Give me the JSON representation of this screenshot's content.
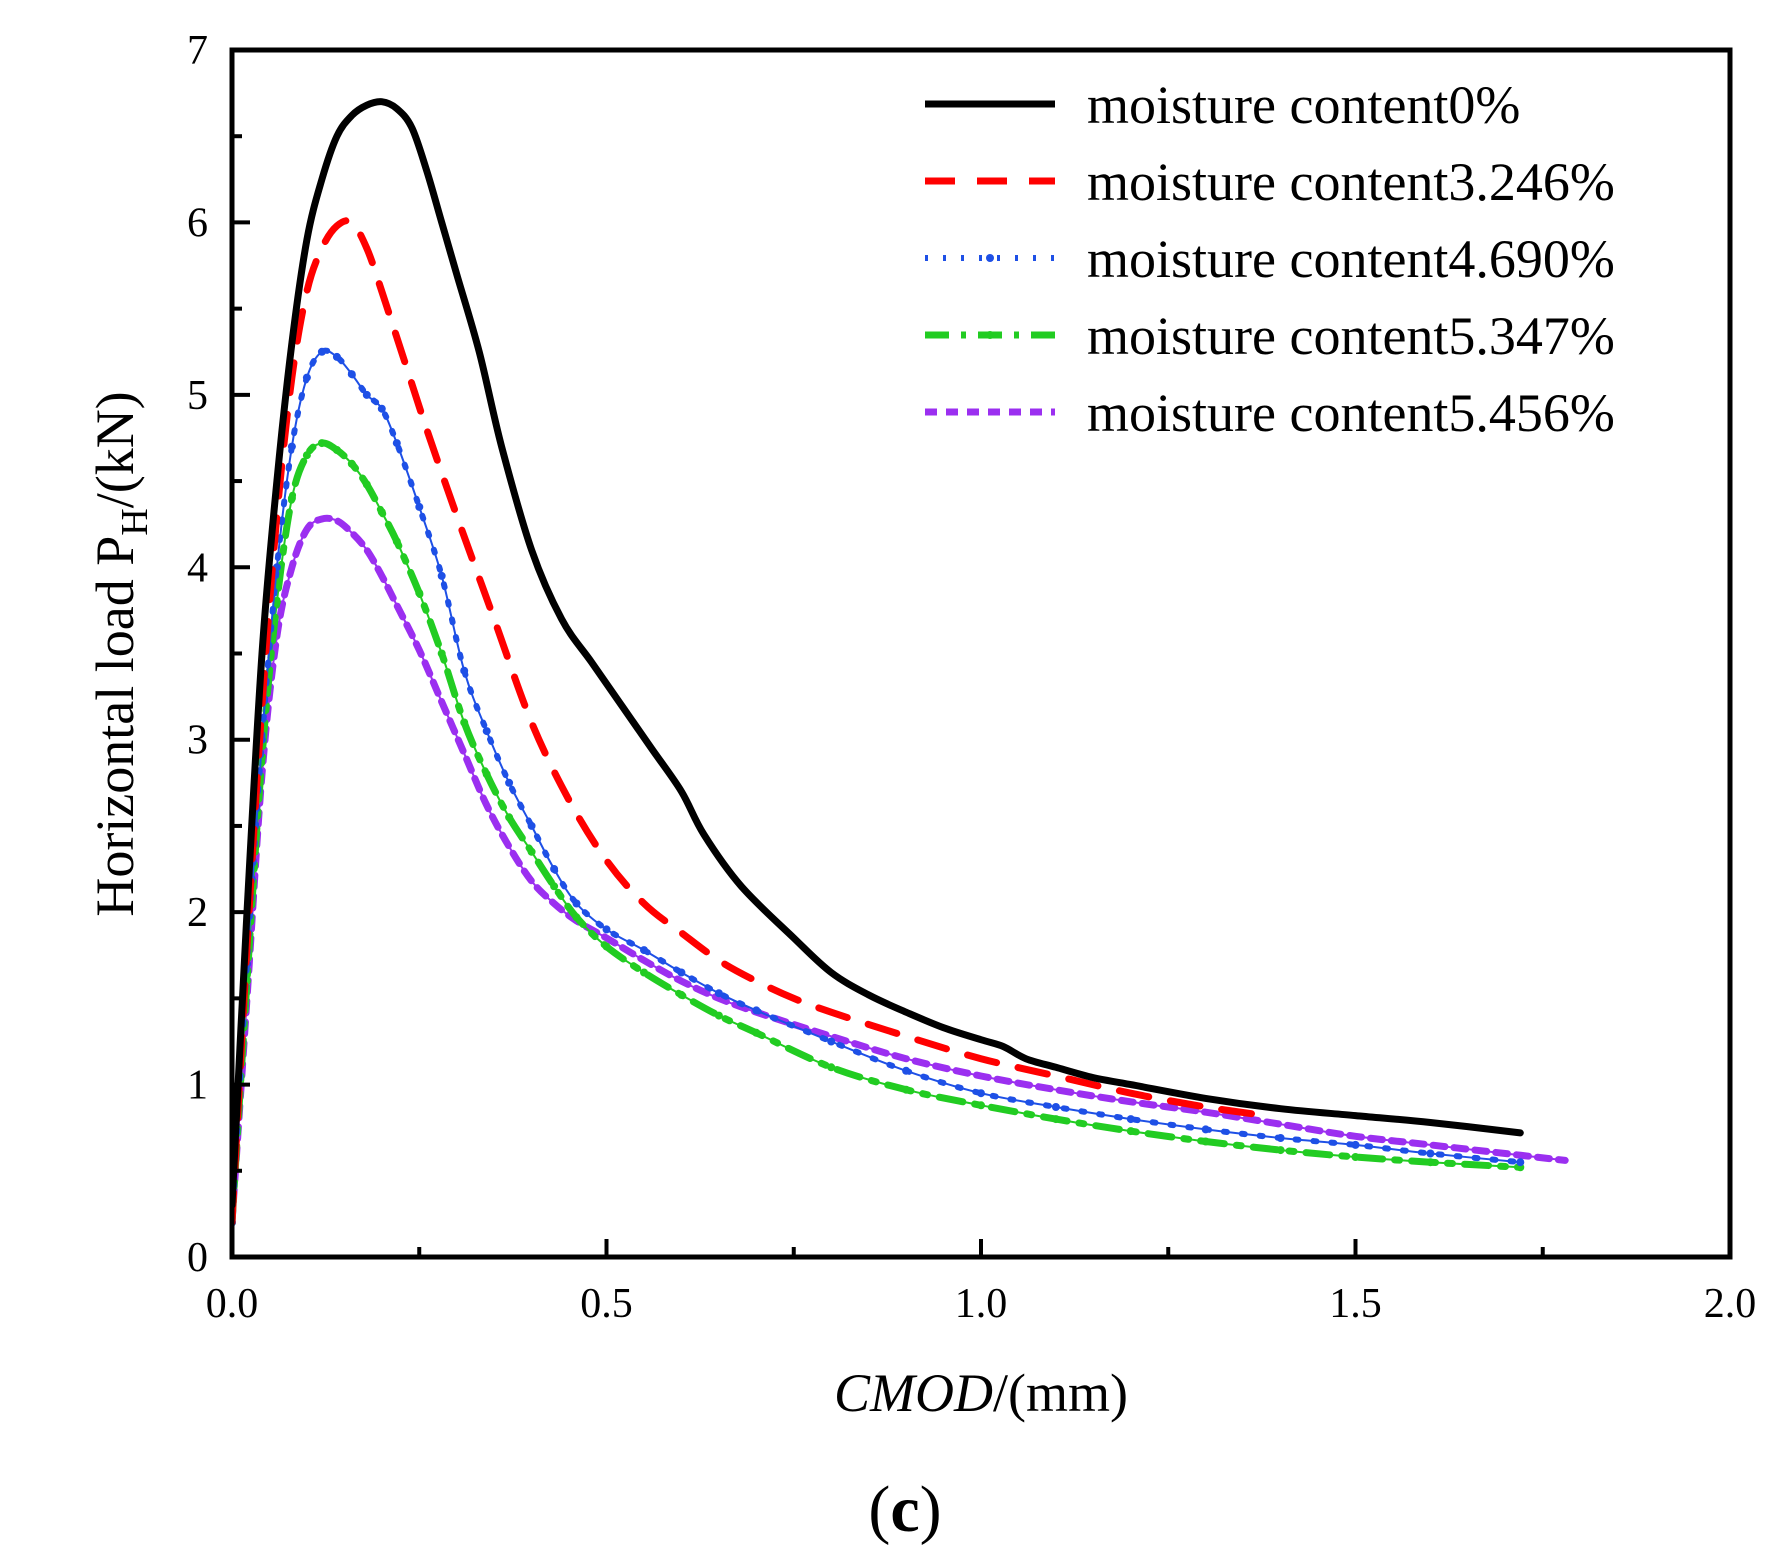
{
  "chart_data": {
    "type": "line",
    "title": "",
    "xlabel": "CMOD/(mm)",
    "xlabel_parts": {
      "italic": "CMOD",
      "rest": "/(mm)"
    },
    "ylabel": "Horizontal load PH/(kN)",
    "ylabel_parts": {
      "main": "Horizontal load P",
      "sub": "H",
      "rest": "/(kN)"
    },
    "xlim": [
      0.0,
      2.0
    ],
    "ylim": [
      0,
      7
    ],
    "x_ticks": [
      0.0,
      0.5,
      1.0,
      1.5,
      2.0
    ],
    "x_tick_labels": [
      "0.0",
      "0.5",
      "1.0",
      "1.5",
      "2.0"
    ],
    "y_ticks": [
      0,
      1,
      2,
      3,
      4,
      5,
      6,
      7
    ],
    "y_tick_labels": [
      "0",
      "1",
      "2",
      "3",
      "4",
      "5",
      "6",
      "7"
    ],
    "grid": false,
    "legend_position": "top-right",
    "panel_label": {
      "open": "(",
      "letter": "c",
      "close": ")"
    },
    "series": [
      {
        "name": "moisture content0%",
        "color": "#000000",
        "style": "solid",
        "x": [
          0,
          0.02,
          0.04,
          0.06,
          0.08,
          0.1,
          0.12,
          0.14,
          0.16,
          0.18,
          0.2,
          0.22,
          0.24,
          0.26,
          0.28,
          0.3,
          0.33,
          0.36,
          0.4,
          0.44,
          0.48,
          0.52,
          0.56,
          0.6,
          0.63,
          0.68,
          0.75,
          0.8,
          0.85,
          0.9,
          0.95,
          1.0,
          1.03,
          1.06,
          1.1,
          1.15,
          1.2,
          1.3,
          1.4,
          1.5,
          1.6,
          1.72
        ],
        "y": [
          0.3,
          2.0,
          3.5,
          4.5,
          5.3,
          5.9,
          6.25,
          6.5,
          6.62,
          6.68,
          6.7,
          6.66,
          6.55,
          6.3,
          6.0,
          5.7,
          5.25,
          4.7,
          4.1,
          3.7,
          3.45,
          3.2,
          2.95,
          2.7,
          2.45,
          2.15,
          1.85,
          1.65,
          1.52,
          1.42,
          1.33,
          1.26,
          1.22,
          1.15,
          1.1,
          1.04,
          1.0,
          0.92,
          0.86,
          0.82,
          0.78,
          0.72
        ]
      },
      {
        "name": "moisture content3.246%",
        "color": "#ff0000",
        "style": "dash",
        "x": [
          0,
          0.02,
          0.04,
          0.06,
          0.08,
          0.1,
          0.12,
          0.14,
          0.16,
          0.18,
          0.2,
          0.23,
          0.26,
          0.3,
          0.35,
          0.4,
          0.45,
          0.5,
          0.55,
          0.6,
          0.65,
          0.7,
          0.75,
          0.8,
          0.9,
          1.0,
          1.1,
          1.2,
          1.3,
          1.38
        ],
        "y": [
          0.2,
          1.8,
          3.2,
          4.3,
          5.1,
          5.6,
          5.85,
          5.98,
          6.0,
          5.85,
          5.6,
          5.2,
          4.8,
          4.3,
          3.7,
          3.1,
          2.65,
          2.3,
          2.05,
          1.88,
          1.72,
          1.6,
          1.5,
          1.42,
          1.28,
          1.15,
          1.05,
          0.95,
          0.87,
          0.82
        ]
      },
      {
        "name": "moisture content4.690%",
        "color": "#1e50e6",
        "style": "dot",
        "x": [
          0,
          0.02,
          0.04,
          0.06,
          0.08,
          0.1,
          0.12,
          0.14,
          0.16,
          0.18,
          0.2,
          0.22,
          0.25,
          0.28,
          0.31,
          0.34,
          0.37,
          0.4,
          0.43,
          0.46,
          0.5,
          0.55,
          0.6,
          0.65,
          0.7,
          0.8,
          0.9,
          1.0,
          1.1,
          1.2,
          1.3,
          1.4,
          1.5,
          1.6,
          1.72
        ],
        "y": [
          0.2,
          1.7,
          3.0,
          4.0,
          4.7,
          5.1,
          5.25,
          5.22,
          5.12,
          5.0,
          4.92,
          4.72,
          4.35,
          3.95,
          3.4,
          3.05,
          2.75,
          2.5,
          2.25,
          2.05,
          1.9,
          1.78,
          1.65,
          1.53,
          1.43,
          1.25,
          1.08,
          0.95,
          0.87,
          0.8,
          0.74,
          0.69,
          0.65,
          0.6,
          0.55
        ]
      },
      {
        "name": "moisture content5.347%",
        "color": "#22cc22",
        "style": "dashdot",
        "x": [
          0,
          0.02,
          0.04,
          0.06,
          0.08,
          0.1,
          0.12,
          0.14,
          0.16,
          0.18,
          0.2,
          0.22,
          0.25,
          0.28,
          0.31,
          0.34,
          0.37,
          0.4,
          0.43,
          0.46,
          0.5,
          0.55,
          0.6,
          0.65,
          0.7,
          0.8,
          0.9,
          1.0,
          1.1,
          1.2,
          1.3,
          1.4,
          1.5,
          1.6,
          1.72
        ],
        "y": [
          0.2,
          1.6,
          2.9,
          3.8,
          4.4,
          4.65,
          4.72,
          4.68,
          4.6,
          4.48,
          4.32,
          4.15,
          3.85,
          3.5,
          3.1,
          2.8,
          2.55,
          2.35,
          2.15,
          1.97,
          1.8,
          1.65,
          1.52,
          1.4,
          1.3,
          1.1,
          0.97,
          0.88,
          0.8,
          0.73,
          0.67,
          0.62,
          0.58,
          0.55,
          0.52
        ]
      },
      {
        "name": "moisture content5.456%",
        "color": "#9b2ff0",
        "style": "shortdash",
        "x": [
          0,
          0.02,
          0.04,
          0.06,
          0.08,
          0.1,
          0.12,
          0.14,
          0.16,
          0.18,
          0.2,
          0.22,
          0.25,
          0.28,
          0.31,
          0.34,
          0.37,
          0.4,
          0.43,
          0.46,
          0.5,
          0.55,
          0.6,
          0.65,
          0.7,
          0.8,
          0.9,
          1.0,
          1.1,
          1.2,
          1.3,
          1.4,
          1.5,
          1.6,
          1.7,
          1.78
        ],
        "y": [
          0.2,
          1.5,
          2.8,
          3.6,
          4.0,
          4.22,
          4.28,
          4.27,
          4.2,
          4.1,
          3.95,
          3.78,
          3.52,
          3.22,
          2.92,
          2.62,
          2.38,
          2.18,
          2.05,
          1.95,
          1.85,
          1.72,
          1.6,
          1.5,
          1.42,
          1.28,
          1.15,
          1.05,
          0.97,
          0.9,
          0.84,
          0.77,
          0.7,
          0.65,
          0.6,
          0.56
        ]
      }
    ]
  }
}
